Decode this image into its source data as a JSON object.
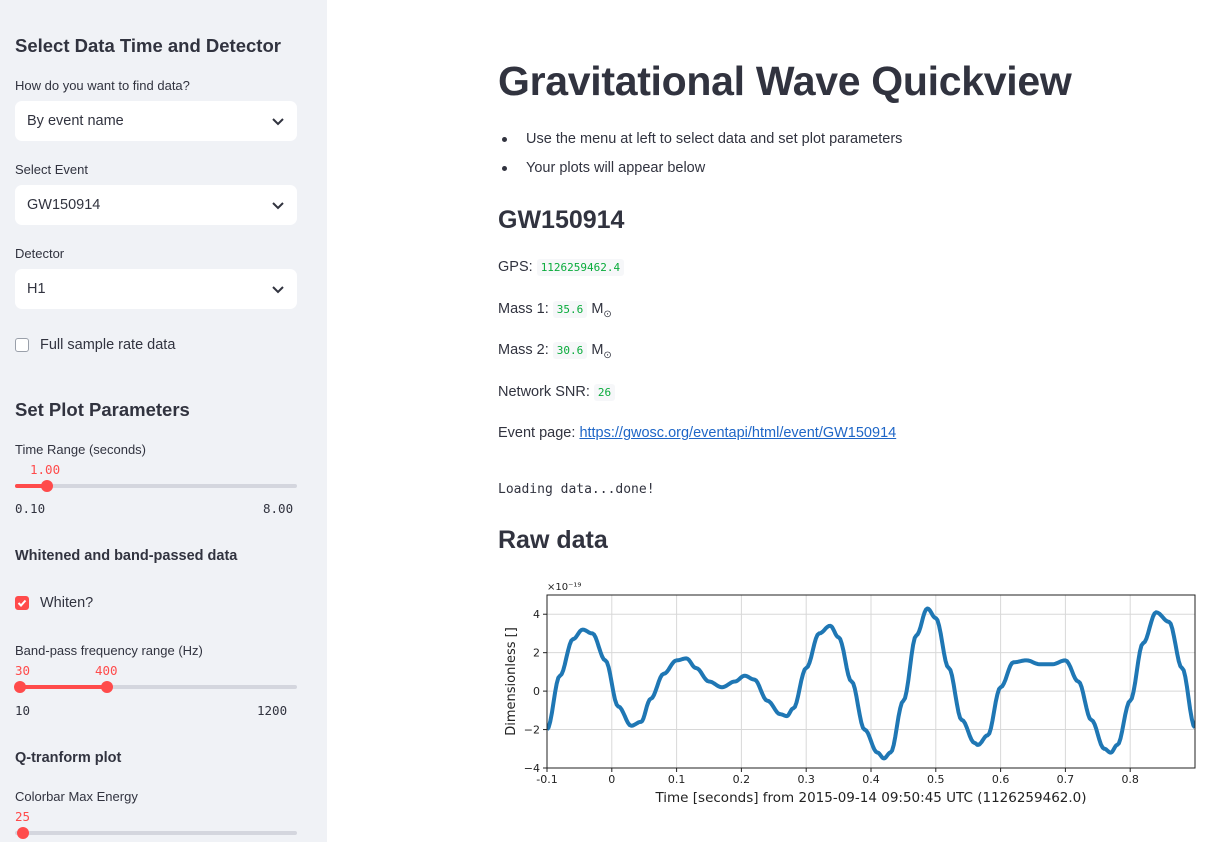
{
  "sidebar": {
    "section1_title": "Select Data Time and Detector",
    "find_label": "How do you want to find data?",
    "find_value": "By event name",
    "event_label": "Select Event",
    "event_value": "GW150914",
    "detector_label": "Detector",
    "detector_value": "H1",
    "fullrate_label": "Full sample rate data",
    "fullrate_checked": false,
    "section2_title": "Set Plot Parameters",
    "time_range": {
      "label": "Time Range (seconds)",
      "value": "1.00",
      "min": "0.10",
      "max": "8.00",
      "fraction": 0.114
    },
    "whiten_section": "Whitened and band-passed data",
    "whiten_label": "Whiten?",
    "whiten_checked": true,
    "bandpass": {
      "label": "Band-pass frequency range (Hz)",
      "low": "30",
      "high": "400",
      "min": "10",
      "max": "1200",
      "low_fraction": 0.017,
      "high_fraction": 0.328
    },
    "q_section": "Q-tranform plot",
    "colorbar": {
      "label": "Colorbar Max Energy",
      "value": "25",
      "fraction": 0.03
    }
  },
  "main": {
    "title": "Gravitational Wave Quickview",
    "bullets": [
      "Use the menu at left to select data and set plot parameters",
      "Your plots will appear below"
    ],
    "event_name": "GW150914",
    "gps_label": "GPS:",
    "gps_value": "1126259462.4",
    "mass1_label": "Mass 1:",
    "mass1_value": "35.6",
    "mass2_label": "Mass 2:",
    "mass2_value": "30.6",
    "mass_unit": "M",
    "mass_unit_sub": "⊙",
    "snr_label": "Network SNR:",
    "snr_value": "26",
    "event_page_label": "Event page:",
    "event_page_url": "https://gwosc.org/eventapi/html/event/GW150914",
    "loading_text": "Loading data...done!",
    "raw_heading": "Raw data"
  },
  "colors": {
    "accent": "#ff4b4b",
    "sidebar_bg": "#f0f2f6",
    "line": "#1f77b4",
    "code_green": "#09ab3b",
    "link": "#1e66c7"
  },
  "chart_data": {
    "type": "line",
    "xlabel": "Time [seconds] from 2015-09-14 09:50:45 UTC (1126259462.0)",
    "ylabel": "Dimensionless []",
    "y_multiplier": "×10⁻¹⁹",
    "xlim": [
      -0.1,
      0.9
    ],
    "ylim": [
      -4,
      5
    ],
    "xticks": [
      "-0.1",
      "0",
      "0.1",
      "0.2",
      "0.3",
      "0.4",
      "0.5",
      "0.6",
      "0.7",
      "0.8"
    ],
    "yticks": [
      "4",
      "2",
      "0",
      "−2",
      "−4"
    ],
    "grid": true,
    "series": [
      {
        "x": [
          -0.1,
          -0.08,
          -0.06,
          -0.045,
          -0.03,
          -0.01,
          0.01,
          0.03,
          0.045,
          0.06,
          0.08,
          0.1,
          0.115,
          0.13,
          0.15,
          0.17,
          0.19,
          0.205,
          0.22,
          0.24,
          0.26,
          0.27,
          0.28,
          0.3,
          0.32,
          0.337,
          0.35,
          0.37,
          0.39,
          0.41,
          0.42,
          0.43,
          0.45,
          0.47,
          0.487,
          0.5,
          0.52,
          0.54,
          0.56,
          0.565,
          0.58,
          0.6,
          0.62,
          0.64,
          0.66,
          0.68,
          0.7,
          0.72,
          0.74,
          0.76,
          0.77,
          0.78,
          0.8,
          0.82,
          0.84,
          0.86,
          0.88,
          0.9
        ],
        "y": [
          -2,
          0.8,
          2.7,
          3.2,
          3,
          1.6,
          -0.8,
          -1.8,
          -1.6,
          -0.4,
          0.9,
          1.6,
          1.7,
          1.2,
          0.5,
          0.2,
          0.5,
          0.8,
          0.6,
          -0.5,
          -1.2,
          -1.3,
          -0.9,
          1.2,
          3,
          3.4,
          2.8,
          0.5,
          -2,
          -3.2,
          -3.5,
          -3.2,
          -0.5,
          2.9,
          4.3,
          3.8,
          1.2,
          -1.5,
          -2.7,
          -2.8,
          -2.3,
          0.2,
          1.5,
          1.6,
          1.4,
          1.4,
          1.6,
          0.5,
          -1.5,
          -3,
          -3.2,
          -2.8,
          -0.5,
          2.5,
          4.1,
          3.6,
          1.2,
          -1.9
        ]
      }
    ]
  }
}
